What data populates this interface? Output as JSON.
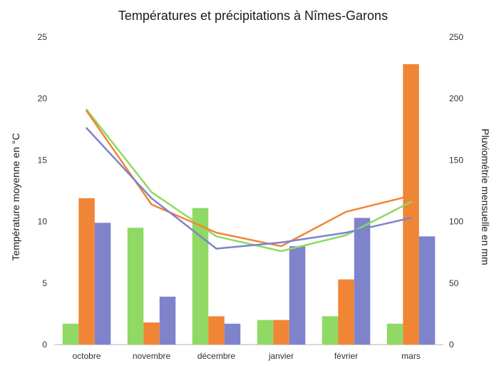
{
  "chart_data": {
    "type": "bar",
    "title": "Températures et précipitations à Nîmes-Garons",
    "ylabel": "Température moyenne en °C",
    "y2label": "Pluviométrie mensuelle en mm",
    "categories": [
      "octobre",
      "novembre",
      "décembre",
      "janvier",
      "février",
      "mars"
    ],
    "ylim": [
      0,
      25
    ],
    "y2lim": [
      0,
      250
    ],
    "yticks": [
      "0",
      "5",
      "10",
      "15",
      "20",
      "25"
    ],
    "y2ticks": [
      "0",
      "50",
      "100",
      "150",
      "200",
      "250"
    ],
    "grid": false,
    "legend": "none",
    "series": [
      {
        "kind": "bar",
        "axis": "right",
        "color": "#8fd964",
        "values": [
          17,
          95,
          111,
          20,
          23,
          17
        ]
      },
      {
        "kind": "bar",
        "axis": "right",
        "color": "#f08535",
        "values": [
          119,
          18,
          23,
          20,
          53,
          228
        ]
      },
      {
        "kind": "bar",
        "axis": "right",
        "color": "#7e83cc",
        "values": [
          99,
          39,
          17,
          80,
          103,
          88
        ]
      },
      {
        "kind": "line",
        "axis": "left",
        "color": "#8fd964",
        "values": [
          19.1,
          12.4,
          8.8,
          7.6,
          8.9,
          11.6
        ]
      },
      {
        "kind": "line",
        "axis": "left",
        "color": "#f08535",
        "values": [
          19.0,
          11.4,
          9.1,
          8.0,
          10.8,
          12.1
        ]
      },
      {
        "kind": "line",
        "axis": "left",
        "color": "#7e83cc",
        "values": [
          17.6,
          11.9,
          7.8,
          8.3,
          9.1,
          10.3
        ]
      }
    ]
  }
}
